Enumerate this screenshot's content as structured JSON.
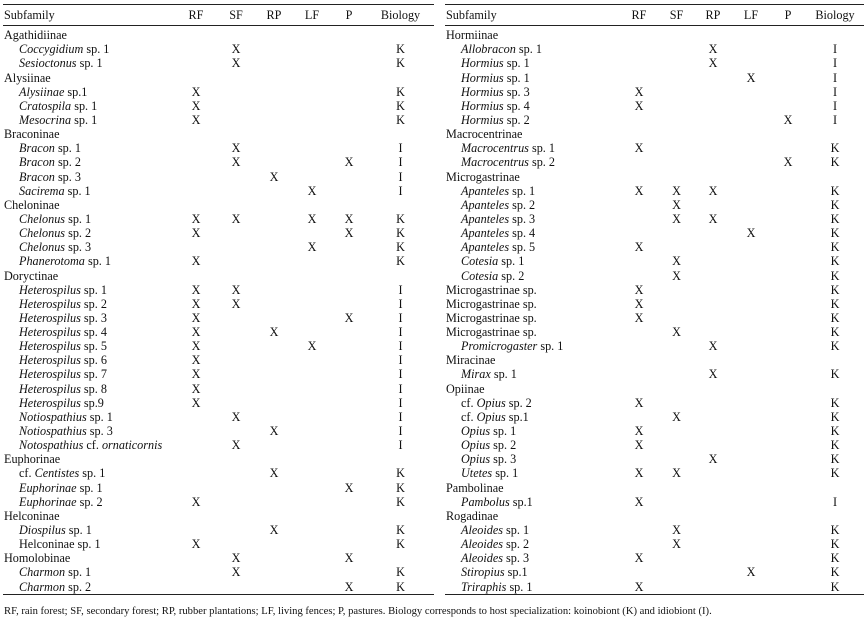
{
  "headers": [
    "Subfamily",
    "RF",
    "SF",
    "RP",
    "LF",
    "P",
    "Biology"
  ],
  "left_rows": [
    {
      "g": 1,
      "t": [
        "Agathidiinae"
      ]
    },
    {
      "t": [
        [
          "Coccygidium",
          1
        ],
        " sp. 1"
      ],
      "sf": "X",
      "bio": "K"
    },
    {
      "t": [
        [
          "Sesioctonus",
          1
        ],
        " sp. 1"
      ],
      "sf": "X",
      "bio": "K"
    },
    {
      "g": 1,
      "t": [
        "Alysiinae"
      ]
    },
    {
      "t": [
        [
          "Alysiinae",
          1
        ],
        " sp.1"
      ],
      "rf": "X",
      "bio": "K"
    },
    {
      "t": [
        [
          "Cratospila",
          1
        ],
        " sp. 1"
      ],
      "rf": "X",
      "bio": "K"
    },
    {
      "t": [
        [
          "Mesocrina",
          1
        ],
        " sp. 1"
      ],
      "rf": "X",
      "bio": "K"
    },
    {
      "g": 1,
      "t": [
        "Braconinae"
      ]
    },
    {
      "t": [
        [
          "Bracon",
          1
        ],
        " sp. 1"
      ],
      "sf": "X",
      "bio": "I"
    },
    {
      "t": [
        [
          "Bracon",
          1
        ],
        " sp. 2"
      ],
      "sf": "X",
      "p": "X",
      "bio": "I"
    },
    {
      "t": [
        [
          "Bracon",
          1
        ],
        " sp. 3"
      ],
      "rp": "X",
      "bio": "I"
    },
    {
      "t": [
        [
          "Sacirema",
          1
        ],
        " sp. 1"
      ],
      "lf": "X",
      "bio": "I"
    },
    {
      "g": 1,
      "t": [
        "Cheloninae"
      ]
    },
    {
      "t": [
        [
          "Chelonus",
          1
        ],
        " sp. 1"
      ],
      "rf": "X",
      "sf": "X",
      "lf": "X",
      "p": "X",
      "bio": "K"
    },
    {
      "t": [
        [
          "Chelonus",
          1
        ],
        " sp. 2"
      ],
      "rf": "X",
      "p": "X",
      "bio": "K"
    },
    {
      "t": [
        [
          "Chelonus",
          1
        ],
        " sp. 3"
      ],
      "lf": "X",
      "bio": "K"
    },
    {
      "t": [
        [
          "Phanerotoma",
          1
        ],
        " sp. 1"
      ],
      "rf": "X",
      "bio": "K"
    },
    {
      "g": 1,
      "t": [
        "Doryctinae"
      ]
    },
    {
      "t": [
        [
          "Heterospilus",
          1
        ],
        " sp. 1"
      ],
      "rf": "X",
      "sf": "X",
      "bio": "I"
    },
    {
      "t": [
        [
          "Heterospilus",
          1
        ],
        " sp. 2"
      ],
      "rf": "X",
      "sf": "X",
      "bio": "I"
    },
    {
      "t": [
        [
          "Heterospilus",
          1
        ],
        " sp. 3"
      ],
      "rf": "X",
      "p": "X",
      "bio": "I"
    },
    {
      "t": [
        [
          "Heterospilus",
          1
        ],
        " sp. 4"
      ],
      "rf": "X",
      "rp": "X",
      "bio": "I"
    },
    {
      "t": [
        [
          "Heterospilus",
          1
        ],
        " sp. 5"
      ],
      "rf": "X",
      "lf": "X",
      "bio": "I"
    },
    {
      "t": [
        [
          "Heterospilus",
          1
        ],
        " sp. 6"
      ],
      "rf": "X",
      "bio": "I"
    },
    {
      "t": [
        [
          "Heterospilus",
          1
        ],
        " sp. 7"
      ],
      "rf": "X",
      "bio": "I"
    },
    {
      "t": [
        [
          "Heterospilus",
          1
        ],
        " sp. 8"
      ],
      "rf": "X",
      "bio": "I"
    },
    {
      "t": [
        [
          "Heterospilus",
          1
        ],
        " sp.9"
      ],
      "rf": "X",
      "bio": "I"
    },
    {
      "t": [
        [
          "Notiospathius",
          1
        ],
        " sp. 1"
      ],
      "sf": "X",
      "bio": "I"
    },
    {
      "t": [
        [
          "Notiospathius",
          1
        ],
        " sp. 3"
      ],
      "rp": "X",
      "bio": "I"
    },
    {
      "t": [
        [
          "Notospathius",
          1
        ],
        " cf. ",
        [
          "ornaticornis",
          1
        ]
      ],
      "sf": "X",
      "bio": "I"
    },
    {
      "g": 1,
      "t": [
        "Euphorinae"
      ]
    },
    {
      "t": [
        "cf. ",
        [
          "Centistes",
          1
        ],
        " sp. 1"
      ],
      "rp": "X",
      "bio": "K"
    },
    {
      "t": [
        [
          "Euphorinae",
          1
        ],
        " sp. 1"
      ],
      "p": "X",
      "bio": "K"
    },
    {
      "t": [
        [
          "Euphorinae",
          1
        ],
        " sp. 2"
      ],
      "rf": "X",
      "bio": "K"
    },
    {
      "g": 1,
      "t": [
        "Helconinae"
      ]
    },
    {
      "t": [
        [
          "Diospilus",
          1
        ],
        " sp. 1"
      ],
      "rp": "X",
      "bio": "K"
    },
    {
      "t": [
        "Helconinae sp. 1"
      ],
      "rf": "X",
      "bio": "K"
    },
    {
      "g": 1,
      "t": [
        "Homolobinae"
      ],
      "sf": "X",
      "p": "X"
    },
    {
      "t": [
        [
          "Charmon",
          1
        ],
        " sp. 1"
      ],
      "sf": "X",
      "bio": "K"
    },
    {
      "t": [
        [
          "Charmon",
          1
        ],
        " sp. 2"
      ],
      "p": "X",
      "bio": "K"
    }
  ],
  "right_rows": [
    {
      "g": 1,
      "t": [
        "Hormiinae"
      ]
    },
    {
      "t": [
        [
          "Allobracon",
          1
        ],
        " sp. 1"
      ],
      "rp": "X",
      "bio": "I"
    },
    {
      "t": [
        [
          "Hormius",
          1
        ],
        " sp. 1"
      ],
      "rp": "X",
      "bio": "I"
    },
    {
      "t": [
        [
          "Hormius",
          1
        ],
        " sp. 1"
      ],
      "lf": "X",
      "bio": "I"
    },
    {
      "t": [
        [
          "Hormius",
          1
        ],
        " sp. 3"
      ],
      "rf": "X",
      "bio": "I"
    },
    {
      "t": [
        [
          "Hormius",
          1
        ],
        " sp. 4"
      ],
      "rf": "X",
      "bio": "I"
    },
    {
      "t": [
        [
          "Hormius",
          1
        ],
        " sp. 2"
      ],
      "p": "X",
      "bio": "I"
    },
    {
      "g": 1,
      "t": [
        "Macrocentrinae"
      ]
    },
    {
      "t": [
        [
          "Macrocentrus",
          1
        ],
        " sp. 1"
      ],
      "rf": "X",
      "bio": "K"
    },
    {
      "t": [
        [
          "Macrocentrus",
          1
        ],
        " sp. 2"
      ],
      "p": "X",
      "bio": "K"
    },
    {
      "g": 1,
      "t": [
        "Microgastrinae"
      ]
    },
    {
      "t": [
        [
          "Apanteles",
          1
        ],
        " sp. 1"
      ],
      "rf": "X",
      "sf": "X",
      "rp": "X",
      "bio": "K"
    },
    {
      "t": [
        [
          "Apanteles",
          1
        ],
        " sp. 2"
      ],
      "sf": "X",
      "bio": "K"
    },
    {
      "t": [
        [
          "Apanteles",
          1
        ],
        " sp. 3"
      ],
      "sf": "X",
      "rp": "X",
      "bio": "K"
    },
    {
      "t": [
        [
          "Apanteles",
          1
        ],
        " sp. 4"
      ],
      "lf": "X",
      "bio": "K"
    },
    {
      "t": [
        [
          "Apanteles",
          1
        ],
        " sp. 5"
      ],
      "rf": "X",
      "bio": "K"
    },
    {
      "t": [
        [
          "Cotesia",
          1
        ],
        " sp. 1"
      ],
      "sf": "X",
      "bio": "K"
    },
    {
      "t": [
        [
          "Cotesia",
          1
        ],
        " sp. 2"
      ],
      "sf": "X",
      "bio": "K"
    },
    {
      "g": 1,
      "t": [
        "Microgastrinae sp."
      ],
      "rf": "X",
      "bio": "K"
    },
    {
      "g": 1,
      "t": [
        "Microgastrinae sp."
      ],
      "rf": "X",
      "bio": "K"
    },
    {
      "g": 1,
      "t": [
        "Microgastrinae sp."
      ],
      "rf": "X",
      "bio": "K"
    },
    {
      "g": 1,
      "t": [
        "Microgastrinae sp."
      ],
      "sf": "X",
      "bio": "K"
    },
    {
      "t": [
        [
          "Promicrogaster",
          1
        ],
        " sp. 1"
      ],
      "rp": "X",
      "bio": "K"
    },
    {
      "g": 1,
      "t": [
        "Miracinae"
      ]
    },
    {
      "t": [
        [
          "Mirax",
          1
        ],
        " sp. 1"
      ],
      "rp": "X",
      "bio": "K"
    },
    {
      "g": 1,
      "t": [
        "Opiinae"
      ]
    },
    {
      "t": [
        "cf. ",
        [
          "Opius",
          1
        ],
        " sp. 2"
      ],
      "rf": "X",
      "bio": "K"
    },
    {
      "t": [
        "cf. ",
        [
          "Opius",
          1
        ],
        " sp.1"
      ],
      "sf": "X",
      "bio": "K"
    },
    {
      "t": [
        [
          "Opius",
          1
        ],
        " sp. 1"
      ],
      "rf": "X",
      "bio": "K"
    },
    {
      "t": [
        [
          "Opius",
          1
        ],
        " sp. 2"
      ],
      "rf": "X",
      "bio": "K"
    },
    {
      "t": [
        [
          "Opius",
          1
        ],
        " sp. 3"
      ],
      "rp": "X",
      "bio": "K"
    },
    {
      "t": [
        [
          "Utetes",
          1
        ],
        " sp. 1"
      ],
      "rf": "X",
      "sf": "X",
      "bio": "K"
    },
    {
      "g": 1,
      "t": [
        "Pambolinae"
      ]
    },
    {
      "t": [
        [
          "Pambolus",
          1
        ],
        " sp.1"
      ],
      "rf": "X",
      "bio": "I"
    },
    {
      "g": 1,
      "t": [
        "Rogadinae"
      ]
    },
    {
      "t": [
        [
          "Aleoides",
          1
        ],
        " sp. 1"
      ],
      "sf": "X",
      "bio": "K"
    },
    {
      "t": [
        [
          "Aleoides",
          1
        ],
        " sp. 2"
      ],
      "sf": "X",
      "bio": "K"
    },
    {
      "t": [
        [
          "Aleoides",
          1
        ],
        " sp. 3"
      ],
      "rf": "X",
      "bio": "K"
    },
    {
      "t": [
        [
          "Stiropius",
          1
        ],
        " sp.1"
      ],
      "lf": "X",
      "bio": "K"
    },
    {
      "t": [
        [
          "Triraphis",
          1
        ],
        " sp. 1"
      ],
      "rf": "X",
      "bio": "K"
    }
  ],
  "footnote": "RF, rain forest; SF, secondary forest; RP, rubber plantations; LF, living fences; P, pastures. Biology corresponds to host specialization: koinobiont (K) and idiobiont (I)."
}
